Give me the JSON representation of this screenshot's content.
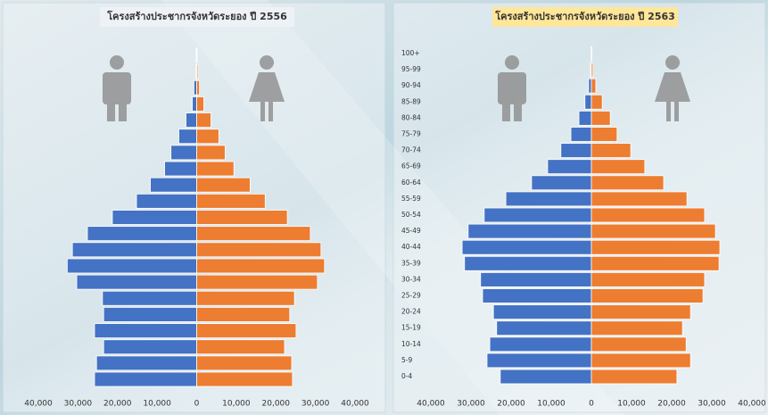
{
  "chart_data": [
    {
      "type": "bar",
      "title": "โครงสร้างประชากรจังหวัดระยอง ปี 2556",
      "categories": [
        null,
        null,
        null,
        null,
        null,
        null,
        null,
        null,
        null,
        null,
        null,
        null,
        null,
        null,
        null,
        null,
        null,
        null,
        null,
        null,
        null
      ],
      "series": [
        {
          "color": "#4472c4",
          "values": [
            -25800,
            -25300,
            -23500,
            -25800,
            -23500,
            -23800,
            -30300,
            -32700,
            -31400,
            -27600,
            -21300,
            -15200,
            -11700,
            -8100,
            -6500,
            -4500,
            -2700,
            -1100,
            -700,
            -200,
            -100
          ]
        },
        {
          "color": "#ed7d31",
          "values": [
            24200,
            24000,
            22200,
            25100,
            23500,
            24700,
            30500,
            32300,
            31400,
            28700,
            22900,
            17300,
            13500,
            9400,
            7200,
            5600,
            3600,
            1800,
            700,
            300,
            100
          ]
        }
      ],
      "xlim": [
        -40000,
        40000
      ],
      "xticks": [
        {
          "value": -40000,
          "label": "40,000"
        },
        {
          "value": -30000,
          "label": "30,000"
        },
        {
          "value": -20000,
          "label": "20,000"
        },
        {
          "value": -10000,
          "label": "10,000"
        },
        0,
        {
          "value": 10000,
          "label": "10,000"
        },
        {
          "value": 20000,
          "label": "20,000"
        },
        {
          "value": 30000,
          "label": "30,000"
        },
        {
          "value": 40000,
          "label": "40,000"
        }
      ]
    },
    {
      "type": "bar",
      "title": "โครงสร้างประชากรจังหวัดระยอง ปี 2563",
      "categories": [
        "0-4",
        "5-9",
        "10-14",
        "15-19",
        "20-24",
        "25-29",
        "30-34",
        "35-39",
        "40-44",
        "45-49",
        "50-54",
        "55-59",
        "60-64",
        "65-69",
        "70-74",
        "75-79",
        "80-84",
        "85-89",
        "90-94",
        "95-99",
        "100+"
      ],
      "series": [
        {
          "color": "#4472c4",
          "values": [
            -22700,
            -26000,
            -25300,
            -23600,
            -24400,
            -27100,
            -27600,
            -31600,
            -32200,
            -30700,
            -26700,
            -21300,
            -14900,
            -10900,
            -7600,
            -5100,
            -3100,
            -1600,
            -700,
            -200,
            -50
          ]
        },
        {
          "color": "#ed7d31",
          "values": [
            21300,
            24700,
            23600,
            22700,
            24700,
            27800,
            28200,
            31800,
            32000,
            30900,
            28200,
            23800,
            18000,
            13300,
            9800,
            6400,
            4700,
            2700,
            1100,
            400,
            100
          ]
        }
      ],
      "xlim": [
        -40000,
        40000
      ],
      "xticks": [
        {
          "value": -40000,
          "label": "40,000"
        },
        {
          "value": -30000,
          "label": "30,000"
        },
        {
          "value": -20000,
          "label": "20,000"
        },
        {
          "value": -10000,
          "label": "10,000"
        },
        0,
        {
          "value": 10000,
          "label": "10,000"
        },
        {
          "value": 20000,
          "label": "20,000"
        },
        {
          "value": 30000,
          "label": "30,000"
        },
        {
          "value": 40000,
          "label": "40,000"
        }
      ]
    }
  ]
}
